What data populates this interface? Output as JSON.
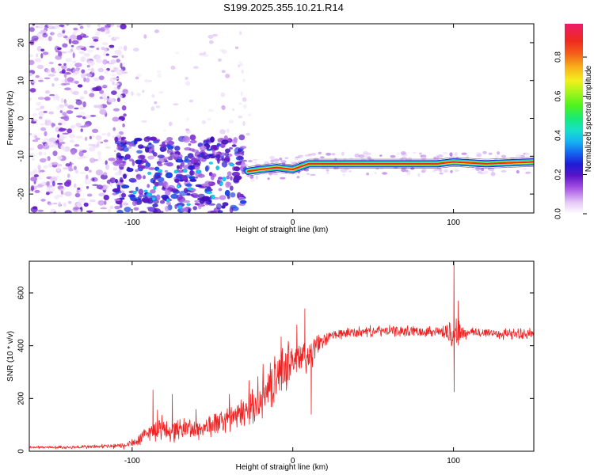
{
  "chart_data": [
    {
      "type": "heatmap",
      "title": "S199.2025.355.10.21.R14",
      "xlabel": "Height of straight line (km)",
      "ylabel": "Frequency (Hz)",
      "xlim": [
        -164,
        150
      ],
      "ylim": [
        -25,
        25
      ],
      "xticks": [
        -100,
        0,
        100
      ],
      "yticks": [
        -20,
        -10,
        0,
        10,
        20
      ],
      "colorbar": {
        "label": "Normalized spectral amplitude",
        "range": [
          0.0,
          0.97
        ],
        "ticks": [
          "0.0",
          "0.2",
          "0.4",
          "0.6",
          "0.8"
        ],
        "tick_values": [
          0.0,
          0.2,
          0.4,
          0.6,
          0.8
        ]
      },
      "tone_line": {
        "x_start": -28,
        "x_end": 150,
        "freq_points": [
          [
            -28,
            -14
          ],
          [
            -20,
            -13.5
          ],
          [
            -10,
            -13
          ],
          [
            0,
            -13.5
          ],
          [
            10,
            -12
          ],
          [
            30,
            -12
          ],
          [
            60,
            -12
          ],
          [
            90,
            -12
          ],
          [
            100,
            -11.5
          ],
          [
            120,
            -12
          ],
          [
            150,
            -11.5
          ]
        ],
        "amplitude_core": 0.92
      },
      "noise_regions": [
        {
          "x_range": [
            -164,
            -110
          ],
          "freq_range": [
            -25,
            25
          ],
          "amplitude_max": 0.18
        },
        {
          "x_range": [
            -110,
            -30
          ],
          "freq_range": [
            -25,
            -5
          ],
          "amplitude_max": 0.32
        }
      ]
    },
    {
      "type": "line",
      "title": "",
      "xlabel": "Height of straight line (km)",
      "ylabel": "SNR (10 * v/v)",
      "xlim": [
        -164,
        150
      ],
      "ylim": [
        0,
        720
      ],
      "xticks": [
        -100,
        0,
        100
      ],
      "yticks": [
        0,
        200,
        400,
        600
      ],
      "series": [
        {
          "name": "SNR",
          "color": "#ee2222",
          "x": [
            -164,
            -140,
            -120,
            -105,
            -100,
            -95,
            -90,
            -85,
            -80,
            -75,
            -70,
            -65,
            -60,
            -55,
            -50,
            -45,
            -40,
            -35,
            -30,
            -25,
            -20,
            -15,
            -10,
            -5,
            0,
            5,
            10,
            15,
            20,
            25,
            30,
            40,
            50,
            60,
            70,
            80,
            90,
            95,
            98,
            100,
            102,
            105,
            110,
            120,
            130,
            140,
            150
          ],
          "values": [
            15,
            15,
            18,
            20,
            30,
            45,
            70,
            85,
            80,
            75,
            85,
            90,
            80,
            90,
            100,
            110,
            125,
            130,
            150,
            170,
            190,
            230,
            280,
            320,
            350,
            345,
            360,
            400,
            420,
            440,
            445,
            450,
            455,
            455,
            455,
            455,
            455,
            450,
            445,
            450,
            455,
            445,
            450,
            450,
            445,
            445,
            445
          ],
          "noise_amp": [
            5,
            6,
            8,
            12,
            20,
            25,
            35,
            40,
            40,
            40,
            40,
            40,
            40,
            40,
            45,
            45,
            50,
            50,
            60,
            60,
            70,
            80,
            90,
            90,
            80,
            80,
            70,
            40,
            25,
            20,
            20,
            20,
            20,
            20,
            20,
            20,
            20,
            30,
            60,
            90,
            60,
            35,
            20,
            20,
            20,
            20,
            20
          ],
          "peaks": [
            [
              100.3,
              718
            ],
            [
              100.4,
              225
            ],
            [
              7.5,
              540
            ],
            [
              11.5,
              140
            ],
            [
              103,
              570
            ],
            [
              -87,
              232
            ],
            [
              -75,
              215
            ]
          ]
        }
      ]
    }
  ]
}
